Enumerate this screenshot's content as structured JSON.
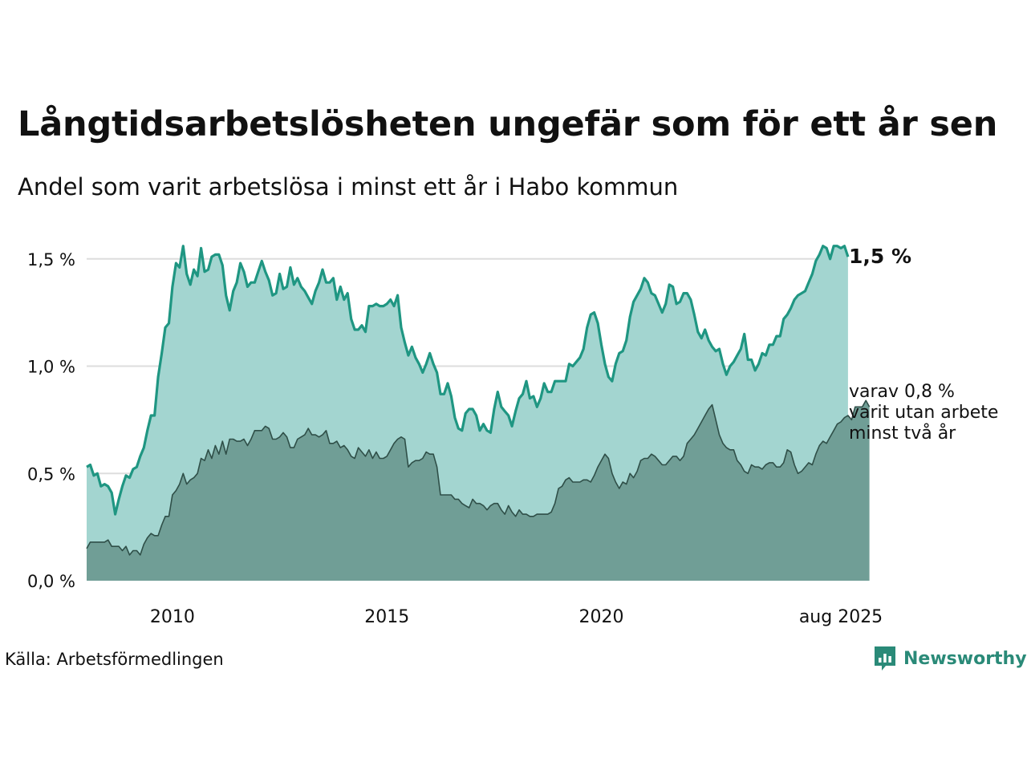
{
  "title": "Långtidsarbetslösheten ungefär som för ett år sen",
  "subtitle": "Andel som varit arbetslösa i minst ett år i Habo kommun",
  "source": "Källa: Arbetsförmedlingen",
  "brand": {
    "name": "Newsworthy",
    "icon": "newsworthy-logo-icon",
    "color": "#2a8a78"
  },
  "colors": {
    "series1_line": "#1f9682",
    "series1_fill": "#a3d5d0",
    "series2_line": "#2f4f48",
    "series2_fill": "#709e96",
    "grid": "#dddddd"
  },
  "end_label": "1,5 %",
  "annotation": {
    "line1": "varav 0,8 %",
    "line2": "varit utan arbete",
    "line3": "minst två år"
  },
  "chart_data": {
    "type": "area",
    "title": "Långtidsarbetslösheten ungefär som för ett år sen",
    "subtitle": "Andel som varit arbetslösa i minst ett år i Habo kommun",
    "x_start": "2008-01",
    "x_end": "2025-08",
    "frequency": "monthly",
    "ylim": [
      0,
      1.6
    ],
    "y_ticks": [
      {
        "value": 0.0,
        "label": "0,0 %"
      },
      {
        "value": 0.5,
        "label": "0,5 %"
      },
      {
        "value": 1.0,
        "label": "1,0 %"
      },
      {
        "value": 1.5,
        "label": "1,5 %"
      }
    ],
    "x_ticks": [
      {
        "date": "2010-01",
        "label": "2010"
      },
      {
        "date": "2015-01",
        "label": "2015"
      },
      {
        "date": "2020-01",
        "label": "2020"
      },
      {
        "date": "2025-08",
        "label": "aug 2025"
      }
    ],
    "grid": true,
    "legend": "none",
    "series": [
      {
        "values": [
          0.53,
          0.54,
          0.49,
          0.5,
          0.44,
          0.45,
          0.44,
          0.41,
          0.31,
          0.38,
          0.44,
          0.49,
          0.48,
          0.52,
          0.53,
          0.58,
          0.62,
          0.7,
          0.77,
          0.77,
          0.95,
          1.06,
          1.18,
          1.2,
          1.37,
          1.48,
          1.46,
          1.56,
          1.43,
          1.38,
          1.45,
          1.42,
          1.55,
          1.44,
          1.45,
          1.51,
          1.52,
          1.52,
          1.47,
          1.33,
          1.26,
          1.35,
          1.39,
          1.48,
          1.44,
          1.37,
          1.39,
          1.39,
          1.44,
          1.49,
          1.44,
          1.4,
          1.33,
          1.34,
          1.43,
          1.36,
          1.37,
          1.46,
          1.38,
          1.41,
          1.37,
          1.35,
          1.32,
          1.29,
          1.35,
          1.39,
          1.45,
          1.39,
          1.39,
          1.41,
          1.31,
          1.37,
          1.31,
          1.34,
          1.22,
          1.17,
          1.17,
          1.19,
          1.16,
          1.28,
          1.28,
          1.29,
          1.28,
          1.28,
          1.29,
          1.31,
          1.28,
          1.33,
          1.18,
          1.11,
          1.05,
          1.09,
          1.04,
          1.01,
          0.97,
          1.01,
          1.06,
          1.01,
          0.97,
          0.87,
          0.87,
          0.92,
          0.86,
          0.76,
          0.71,
          0.7,
          0.78,
          0.8,
          0.8,
          0.77,
          0.7,
          0.73,
          0.7,
          0.69,
          0.8,
          0.88,
          0.81,
          0.79,
          0.77,
          0.72,
          0.79,
          0.85,
          0.87,
          0.93,
          0.85,
          0.86,
          0.81,
          0.85,
          0.92,
          0.88,
          0.88,
          0.93,
          0.93,
          0.93,
          0.93,
          1.01,
          1.0,
          1.02,
          1.04,
          1.08,
          1.18,
          1.24,
          1.25,
          1.2,
          1.1,
          1.01,
          0.95,
          0.93,
          1.01,
          1.06,
          1.07,
          1.12,
          1.23,
          1.3,
          1.33,
          1.36,
          1.41,
          1.39,
          1.34,
          1.33,
          1.29,
          1.25,
          1.29,
          1.38,
          1.37,
          1.29,
          1.3,
          1.34,
          1.34,
          1.31,
          1.24,
          1.16,
          1.13,
          1.17,
          1.12,
          1.09,
          1.07,
          1.08,
          1.01,
          0.96,
          1.0,
          1.02,
          1.05,
          1.08,
          1.15,
          1.03,
          1.03,
          0.98,
          1.01,
          1.06,
          1.05,
          1.1,
          1.1,
          1.14,
          1.14,
          1.22,
          1.24,
          1.27,
          1.31,
          1.33,
          1.34,
          1.35,
          1.39,
          1.43,
          1.49,
          1.52,
          1.56,
          1.55,
          1.5,
          1.56,
          1.56,
          1.55,
          1.56,
          1.51
        ]
      },
      {
        "values": [
          0.15,
          0.18,
          0.18,
          0.18,
          0.18,
          0.18,
          0.19,
          0.16,
          0.16,
          0.16,
          0.14,
          0.16,
          0.12,
          0.14,
          0.14,
          0.12,
          0.17,
          0.2,
          0.22,
          0.21,
          0.21,
          0.26,
          0.3,
          0.3,
          0.4,
          0.42,
          0.45,
          0.5,
          0.45,
          0.47,
          0.48,
          0.5,
          0.57,
          0.56,
          0.61,
          0.57,
          0.63,
          0.59,
          0.65,
          0.59,
          0.66,
          0.66,
          0.65,
          0.65,
          0.66,
          0.63,
          0.66,
          0.7,
          0.7,
          0.7,
          0.72,
          0.71,
          0.66,
          0.66,
          0.67,
          0.69,
          0.67,
          0.62,
          0.62,
          0.66,
          0.67,
          0.68,
          0.71,
          0.68,
          0.68,
          0.67,
          0.68,
          0.7,
          0.64,
          0.64,
          0.65,
          0.62,
          0.63,
          0.61,
          0.58,
          0.57,
          0.62,
          0.6,
          0.58,
          0.61,
          0.57,
          0.6,
          0.57,
          0.57,
          0.58,
          0.61,
          0.64,
          0.66,
          0.67,
          0.66,
          0.53,
          0.55,
          0.56,
          0.56,
          0.57,
          0.6,
          0.59,
          0.59,
          0.53,
          0.4,
          0.4,
          0.4,
          0.4,
          0.38,
          0.38,
          0.36,
          0.35,
          0.34,
          0.38,
          0.36,
          0.36,
          0.35,
          0.33,
          0.35,
          0.36,
          0.36,
          0.33,
          0.31,
          0.35,
          0.32,
          0.3,
          0.33,
          0.31,
          0.31,
          0.3,
          0.3,
          0.31,
          0.31,
          0.31,
          0.31,
          0.32,
          0.36,
          0.43,
          0.44,
          0.47,
          0.48,
          0.46,
          0.46,
          0.46,
          0.47,
          0.47,
          0.46,
          0.49,
          0.53,
          0.56,
          0.59,
          0.57,
          0.5,
          0.46,
          0.43,
          0.46,
          0.45,
          0.5,
          0.48,
          0.51,
          0.56,
          0.57,
          0.57,
          0.59,
          0.58,
          0.56,
          0.54,
          0.54,
          0.56,
          0.58,
          0.58,
          0.56,
          0.58,
          0.64,
          0.66,
          0.68,
          0.71,
          0.74,
          0.77,
          0.8,
          0.82,
          0.75,
          0.68,
          0.64,
          0.62,
          0.61,
          0.61,
          0.56,
          0.54,
          0.51,
          0.5,
          0.54,
          0.53,
          0.53,
          0.52,
          0.54,
          0.55,
          0.55,
          0.53,
          0.53,
          0.55,
          0.61,
          0.6,
          0.54,
          0.5,
          0.51,
          0.53,
          0.55,
          0.54,
          0.59,
          0.63,
          0.65,
          0.64,
          0.67,
          0.7,
          0.73,
          0.74,
          0.76,
          0.77,
          0.75,
          0.81,
          0.81,
          0.81,
          0.84,
          0.81
        ]
      }
    ]
  }
}
